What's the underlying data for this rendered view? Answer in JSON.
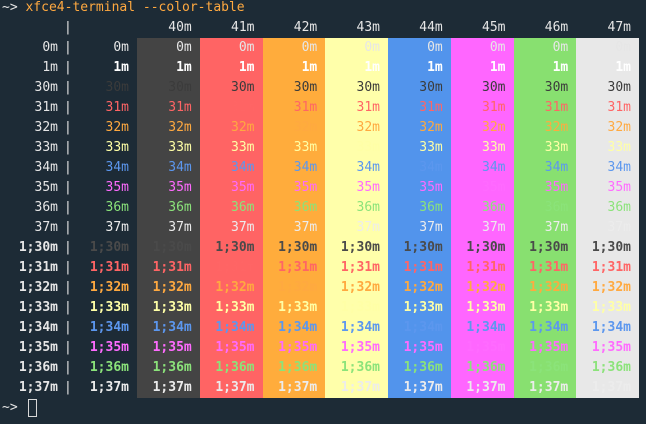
{
  "prompt": "~>",
  "command": "xfce4-terminal --color-table",
  "table": {
    "columns": [
      "40m",
      "41m",
      "42m",
      "43m",
      "44m",
      "45m",
      "46m",
      "47m"
    ],
    "rows": [
      "0m",
      "1m",
      "30m",
      "31m",
      "32m",
      "33m",
      "34m",
      "35m",
      "36m",
      "37m",
      "1;30m",
      "1;31m",
      "1;32m",
      "1;33m",
      "1;34m",
      "1;35m",
      "1;36m",
      "1;37m"
    ]
  }
}
